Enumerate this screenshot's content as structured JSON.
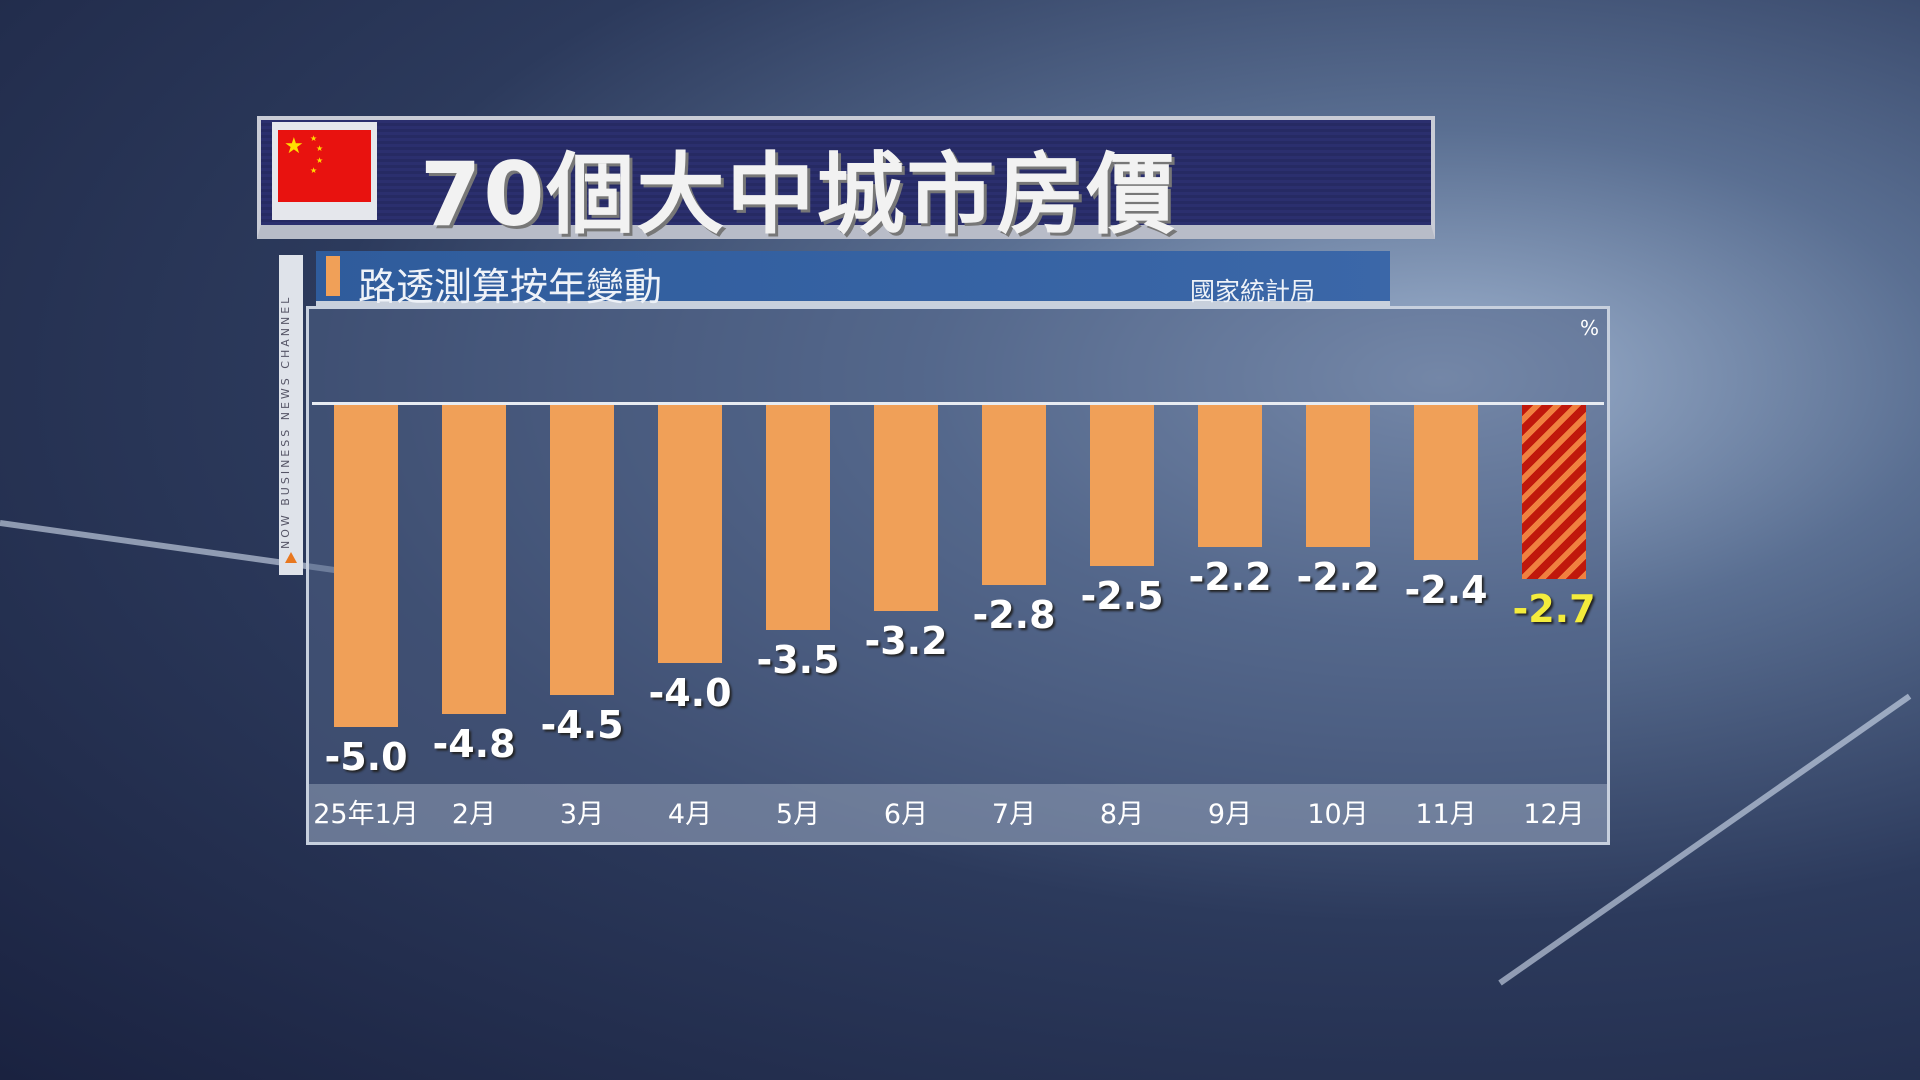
{
  "title": "70個大中城市房價",
  "subtitle": "路透測算按年變動",
  "source": "國家統計局",
  "channel_label": "NOW BUSINESS NEWS CHANNEL",
  "colors": {
    "bar": "#f0a058",
    "highlight_bar": "#c0180c",
    "highlight_label": "#f4ec3c",
    "title_bg": "#2b2f6e",
    "subtitle_bg": "#2f5c9c"
  },
  "chart_data": {
    "type": "bar",
    "title": "70個大中城市房價",
    "subtitle": "路透測算按年變動",
    "ylabel": "%",
    "categories": [
      "25年1月",
      "2月",
      "3月",
      "4月",
      "5月",
      "6月",
      "7月",
      "8月",
      "9月",
      "10月",
      "11月",
      "12月"
    ],
    "values": [
      -5.0,
      -4.8,
      -4.5,
      -4.0,
      -3.5,
      -3.2,
      -2.8,
      -2.5,
      -2.2,
      -2.2,
      -2.4,
      -2.7
    ],
    "value_labels": [
      "-5.0",
      "-4.8",
      "-4.5",
      "-4.0",
      "-3.5",
      "-3.2",
      "-2.8",
      "-2.5",
      "-2.2",
      "-2.2",
      "-2.4",
      "-2.7"
    ],
    "highlight_index": 11,
    "ylim": [
      -6,
      0
    ],
    "grid": false,
    "legend": "none"
  }
}
